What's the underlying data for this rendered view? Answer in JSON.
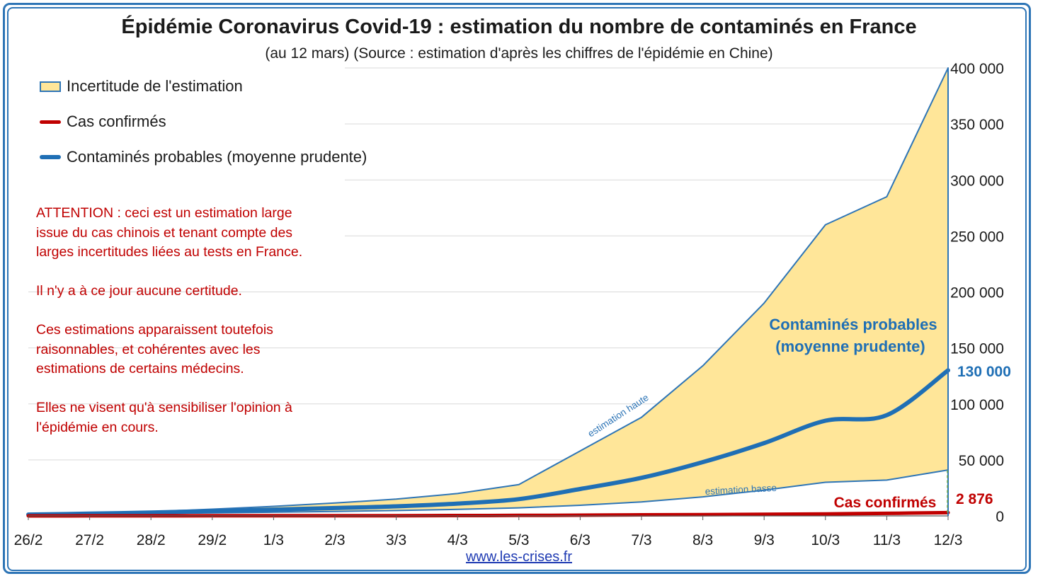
{
  "title": "Épidémie Coronavirus Covid-19 : estimation du nombre de contaminés en France",
  "subtitle": "(au 12 mars) (Source : estimation d'après les chiffres de l'épidémie en Chine)",
  "legend": {
    "uncertainty": "Incertitude de l'estimation",
    "confirmed": "Cas confirmés",
    "probable": "Contaminés probables (moyenne prudente)"
  },
  "warning": [
    "ATTENTION : ceci est un estimation large\nissue du cas chinois et tenant compte des\nlarges incertitudes liées au tests en France.",
    "Il n'y a à ce jour aucune certitude.",
    "Ces estimations apparaissent toutefois\nraisonnables, et cohérentes avec les\nestimations de certains médecins.",
    "Elles ne visent qu'à sensibiliser l'opinion à\nl'épidémie en cours."
  ],
  "source": "www.les-crises.fr",
  "colors": {
    "area_fill": "#ffe699",
    "area_line": "#2e75b6",
    "probable": "#1f6fb5",
    "confirmed": "#c00000",
    "annot_blue": "#1f6fb5"
  },
  "chart_data": {
    "type": "area",
    "categories": [
      "26/2",
      "27/2",
      "28/2",
      "29/2",
      "1/3",
      "2/3",
      "3/3",
      "4/3",
      "5/3",
      "6/3",
      "7/3",
      "8/3",
      "9/3",
      "10/3",
      "11/3",
      "12/3"
    ],
    "yticks": [
      "0",
      "50 000",
      "100 000",
      "150 000",
      "200 000",
      "250 000",
      "300 000",
      "350 000",
      "400 000"
    ],
    "ylim": [
      0,
      400000
    ],
    "grid": true,
    "y_axis_side": "right",
    "legend_position": "top-left",
    "series": [
      {
        "name": "estimation haute",
        "values": [
          1500,
          2500,
          3800,
          6000,
          8500,
          11500,
          15000,
          20000,
          28000,
          58000,
          88000,
          134000,
          190000,
          260000,
          285000,
          400000
        ]
      },
      {
        "name": "estimation basse",
        "values": [
          1000,
          1500,
          2000,
          2700,
          3300,
          4000,
          4800,
          5800,
          7200,
          9500,
          12500,
          17000,
          23000,
          30000,
          32000,
          41000
        ]
      },
      {
        "name": "Contaminés probables (moyenne prudente)",
        "values": [
          1200,
          2000,
          3000,
          4300,
          5600,
          7000,
          8500,
          11000,
          15000,
          24000,
          34000,
          48000,
          65000,
          85000,
          90000,
          130000
        ]
      },
      {
        "name": "Cas confirmés",
        "values": [
          18,
          38,
          57,
          100,
          130,
          191,
          212,
          285,
          423,
          613,
          949,
          1126,
          1412,
          1784,
          2281,
          2876
        ]
      }
    ],
    "annotations": {
      "high_label": "estimation haute",
      "low_label": "estimation basse",
      "probable_label_1": "Contaminés probables",
      "probable_label_2": "(moyenne prudente)",
      "probable_value": "130 000",
      "confirmed_label": "Cas confirmés",
      "confirmed_value": "2 876"
    }
  }
}
